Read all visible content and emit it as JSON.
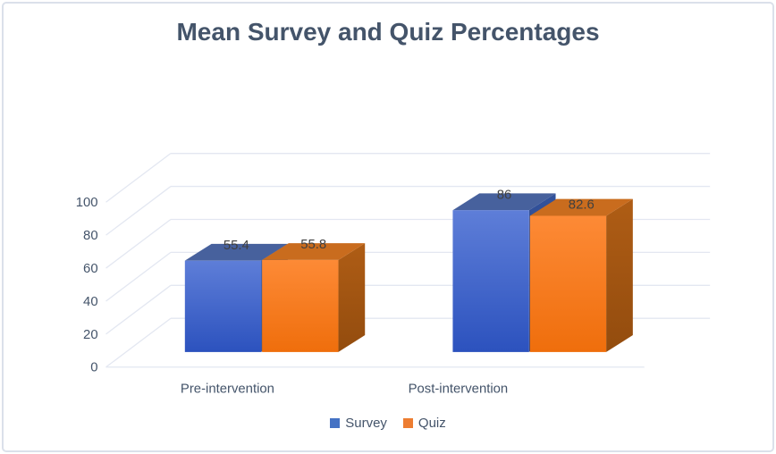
{
  "frame": {
    "background": "#ffffff",
    "border_color": "#dbe0ea"
  },
  "chart_data": {
    "type": "bar",
    "variant": "3d-clustered-column",
    "title": "Mean Survey and Quiz Percentages",
    "title_color": "#44546A",
    "categories": [
      "Pre-intervention",
      "Post-intervention"
    ],
    "series": [
      {
        "name": "Survey",
        "values": [
          55.4,
          86
        ],
        "labels": [
          "55.4",
          "86"
        ],
        "legend_color": "#4472C4",
        "shades": {
          "front_top": "#5E7ED8",
          "front_bottom": "#2C52BE",
          "top": "#47619D",
          "side_top": "#32529B",
          "side_bottom": "#27407E"
        }
      },
      {
        "name": "Quiz",
        "values": [
          55.8,
          82.6
        ],
        "labels": [
          "55.8",
          "82.6"
        ],
        "legend_color": "#ED7D31",
        "shades": {
          "front_top": "#FD8A36",
          "front_bottom": "#EF6E0C",
          "top": "#C96C1E",
          "side_top": "#AF5D15",
          "side_bottom": "#934C0E"
        }
      }
    ],
    "y_ticks": [
      0,
      20,
      40,
      60,
      80,
      100
    ],
    "ylim": [
      0,
      100
    ],
    "grid": true,
    "gridline_color": "#E3E7F1",
    "axis_text_color": "#44546A",
    "data_label_color": "#404040",
    "legend_text_color": "#44546A",
    "legend_position": "bottom"
  }
}
